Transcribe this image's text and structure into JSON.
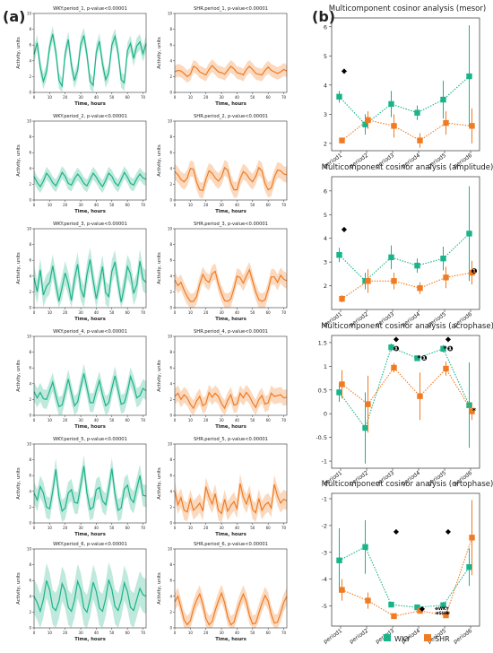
{
  "panel_labels": {
    "a": "(a)",
    "b": "(b)"
  },
  "colors": {
    "wky": "#1bb38a",
    "wky_band": "#bfe9dc",
    "shr": "#f07b22",
    "shr_band": "#fbd9bf",
    "marker": "#000000"
  },
  "common": {
    "xlabel": "Time, hours",
    "ylabel": "Activity, units"
  },
  "legend": {
    "wky": "WKY",
    "shr": "SHR"
  },
  "chart_data": [
    {
      "type": "line",
      "id": "wky_p1",
      "title": "WKY.period_1, p-value<0.00001",
      "xticks": [
        0,
        10,
        20,
        30,
        40,
        50,
        60,
        70
      ],
      "yticks": [
        0,
        2,
        4,
        6,
        8,
        10
      ],
      "xlim": [
        0,
        72
      ],
      "ylim": [
        0,
        10
      ],
      "series": [
        {
          "values": [
            4.8,
            6.3,
            3.2,
            1.4,
            2.6,
            5.8,
            7.4,
            5.1,
            1.5,
            0.8,
            4.9,
            6.7,
            3.4,
            1.5,
            2.8,
            6.1,
            7.2,
            4.8,
            1.4,
            0.9,
            5.1,
            6.5,
            3.6,
            1.6,
            2.5,
            6.0,
            7.1,
            5.0,
            1.6,
            1.2,
            5.3,
            6.2,
            4.3,
            5.9,
            6.4,
            4.9,
            6.2
          ],
          "band": 1.0
        }
      ]
    },
    {
      "type": "line",
      "id": "shr_p1",
      "title": "SHR.period_1, p-value<0.00001",
      "xticks": [
        0,
        10,
        20,
        30,
        40,
        50,
        60,
        70
      ],
      "yticks": [
        0,
        2,
        4,
        6,
        8,
        10
      ],
      "xlim": [
        0,
        72
      ],
      "ylim": [
        0,
        10
      ],
      "series": [
        {
          "values": [
            2.6,
            2.8,
            2.7,
            2.4,
            2.0,
            2.3,
            3.3,
            3.1,
            2.6,
            2.4,
            2.2,
            2.9,
            3.4,
            3.0,
            2.6,
            2.5,
            2.3,
            2.8,
            3.3,
            3.0,
            2.5,
            2.4,
            2.2,
            2.9,
            3.3,
            2.9,
            2.4,
            2.3,
            2.2,
            2.8,
            3.2,
            2.8,
            2.6,
            2.4,
            2.6,
            2.9,
            2.7
          ],
          "band": 0.8
        }
      ]
    },
    {
      "type": "line",
      "id": "wky_p2",
      "title": "WKY.period_2, p-value<0.00001",
      "xticks": [
        0,
        10,
        20,
        30,
        40,
        50,
        60,
        70
      ],
      "yticks": [
        0,
        2,
        4,
        6,
        8,
        10
      ],
      "xlim": [
        0,
        72
      ],
      "ylim": [
        0,
        10
      ],
      "series": [
        {
          "values": [
            3.0,
            2.2,
            1.7,
            2.4,
            3.4,
            2.9,
            2.2,
            1.8,
            2.6,
            3.5,
            3.0,
            2.1,
            1.9,
            2.7,
            3.3,
            2.8,
            2.1,
            1.8,
            2.6,
            3.4,
            2.9,
            2.2,
            1.7,
            2.5,
            3.4,
            3.0,
            2.2,
            1.8,
            2.6,
            3.5,
            2.9,
            2.1,
            1.9,
            2.7,
            3.3,
            2.8,
            2.6
          ],
          "band": 0.8
        }
      ]
    },
    {
      "type": "line",
      "id": "shr_p2",
      "title": "SHR.period_2, p-value<0.00001",
      "xticks": [
        0,
        10,
        20,
        30,
        40,
        50,
        60,
        70
      ],
      "yticks": [
        0,
        2,
        4,
        6,
        8,
        10
      ],
      "xlim": [
        0,
        72
      ],
      "ylim": [
        0,
        10
      ],
      "series": [
        {
          "values": [
            3.6,
            3.2,
            2.6,
            2.3,
            2.8,
            4.0,
            3.9,
            2.3,
            1.3,
            1.2,
            2.6,
            3.7,
            3.4,
            2.8,
            2.4,
            2.9,
            4.1,
            3.8,
            2.2,
            1.3,
            1.3,
            2.7,
            3.6,
            3.3,
            2.7,
            2.3,
            3.0,
            4.1,
            3.7,
            2.1,
            1.3,
            1.5,
            2.9,
            3.8,
            3.7,
            3.3,
            3.2
          ],
          "band": 1.0
        }
      ]
    },
    {
      "type": "line",
      "id": "wky_p3",
      "title": "WKY.period_3, p-value<0.00001",
      "xticks": [
        0,
        10,
        20,
        30,
        40,
        50,
        60,
        70
      ],
      "yticks": [
        0,
        2,
        4,
        6,
        8,
        10
      ],
      "xlim": [
        0,
        72
      ],
      "ylim": [
        0,
        10
      ],
      "series": [
        {
          "values": [
            3.8,
            2.0,
            4.8,
            1.6,
            2.7,
            3.2,
            5.3,
            3.0,
            0.8,
            2.6,
            4.4,
            3.0,
            0.9,
            3.6,
            5.5,
            2.4,
            1.3,
            4.2,
            6.1,
            3.4,
            1.1,
            3.1,
            5.2,
            1.9,
            1.4,
            4.6,
            5.8,
            3.1,
            0.7,
            2.7,
            5.2,
            4.3,
            1.8,
            2.9,
            5.9,
            3.6,
            3.2
          ],
          "band": 1.5
        }
      ]
    },
    {
      "type": "line",
      "id": "shr_p3",
      "title": "SHR.period_3, p-value<0.00001",
      "xticks": [
        0,
        10,
        20,
        30,
        40,
        50,
        60,
        70
      ],
      "yticks": [
        0,
        2,
        4,
        6,
        8,
        10
      ],
      "xlim": [
        0,
        72
      ],
      "ylim": [
        0,
        10
      ],
      "series": [
        {
          "values": [
            3.5,
            2.8,
            3.2,
            2.2,
            1.4,
            0.8,
            0.8,
            1.4,
            3.0,
            4.2,
            3.5,
            3.2,
            4.3,
            4.6,
            3.0,
            1.8,
            0.9,
            0.8,
            1.1,
            2.4,
            4.0,
            3.8,
            3.1,
            4.0,
            4.8,
            3.4,
            2.0,
            1.0,
            0.8,
            1.0,
            2.3,
            3.9,
            3.9,
            3.2,
            4.1,
            3.6,
            3.4
          ],
          "band": 1.0
        }
      ]
    },
    {
      "type": "line",
      "id": "wky_p4",
      "title": "WKY.period_4, p-value<0.00001",
      "xticks": [
        0,
        10,
        20,
        30,
        40,
        50,
        60,
        70
      ],
      "yticks": [
        0,
        2,
        4,
        6,
        8,
        10
      ],
      "xlim": [
        0,
        72
      ],
      "ylim": [
        0,
        10
      ],
      "series": [
        {
          "values": [
            3.0,
            2.2,
            2.9,
            2.1,
            2.0,
            3.1,
            4.2,
            2.5,
            1.1,
            1.3,
            2.9,
            4.6,
            2.8,
            1.2,
            1.7,
            3.6,
            5.3,
            3.5,
            1.6,
            1.6,
            3.1,
            4.4,
            2.6,
            1.2,
            1.6,
            3.4,
            5.0,
            3.2,
            1.4,
            1.6,
            3.0,
            4.9,
            3.8,
            2.2,
            2.5,
            3.4,
            3.1
          ],
          "band": 1.2
        }
      ]
    },
    {
      "type": "line",
      "id": "shr_p4",
      "title": "SHR.period_4, p-value<0.00001",
      "xticks": [
        0,
        10,
        20,
        30,
        40,
        50,
        60,
        70
      ],
      "yticks": [
        0,
        2,
        4,
        6,
        8,
        10
      ],
      "xlim": [
        0,
        72
      ],
      "ylim": [
        0,
        10
      ],
      "series": [
        {
          "values": [
            2.4,
            2.8,
            2.0,
            2.6,
            2.2,
            1.4,
            0.9,
            1.8,
            2.4,
            1.2,
            1.5,
            2.9,
            2.3,
            2.8,
            2.4,
            1.5,
            0.9,
            1.9,
            2.6,
            1.3,
            1.4,
            2.8,
            2.2,
            2.9,
            2.4,
            1.6,
            1.0,
            2.0,
            2.5,
            1.4,
            1.6,
            2.8,
            2.4,
            2.5,
            2.6,
            2.2,
            2.3
          ],
          "band": 1.0
        }
      ]
    },
    {
      "type": "line",
      "id": "wky_p5",
      "title": "WKY.period_5, p-value<0.00001",
      "xticks": [
        0,
        10,
        20,
        30,
        40,
        50,
        60,
        70
      ],
      "yticks": [
        0,
        2,
        4,
        6,
        8,
        10
      ],
      "xlim": [
        0,
        72
      ],
      "ylim": [
        0,
        10
      ],
      "series": [
        {
          "values": [
            3.8,
            2.9,
            4.6,
            3.8,
            2.0,
            1.8,
            4.0,
            6.8,
            3.3,
            1.5,
            1.9,
            3.8,
            4.2,
            2.6,
            2.5,
            4.8,
            7.2,
            3.8,
            1.7,
            2.0,
            4.2,
            4.5,
            2.8,
            2.3,
            4.3,
            6.9,
            3.6,
            1.6,
            1.9,
            4.3,
            4.8,
            3.1,
            2.6,
            4.4,
            6.0,
            3.5,
            3.4
          ],
          "band": 1.4
        }
      ]
    },
    {
      "type": "line",
      "id": "shr_p5",
      "title": "SHR.period_5, p-value<0.00001",
      "xticks": [
        0,
        10,
        20,
        30,
        40,
        50,
        60,
        70
      ],
      "yticks": [
        0,
        2,
        4,
        6,
        8,
        10
      ],
      "xlim": [
        0,
        72
      ],
      "ylim": [
        0,
        10
      ],
      "series": [
        {
          "values": [
            4.0,
            2.3,
            3.2,
            1.6,
            1.4,
            3.0,
            1.6,
            2.0,
            2.5,
            1.5,
            4.6,
            3.3,
            2.4,
            3.7,
            1.6,
            1.2,
            3.0,
            1.5,
            2.2,
            2.7,
            1.8,
            5.0,
            3.3,
            2.4,
            3.6,
            1.7,
            1.3,
            3.1,
            1.6,
            2.3,
            2.6,
            1.9,
            4.9,
            3.4,
            2.5,
            3.0,
            2.8
          ],
          "band": 1.2
        }
      ]
    },
    {
      "type": "line",
      "id": "wky_p6",
      "title": "WKY.period_6, p-value<0.00001",
      "xticks": [
        0,
        10,
        20,
        30,
        40,
        50,
        60,
        70
      ],
      "yticks": [
        0,
        2,
        4,
        6,
        8,
        10
      ],
      "xlim": [
        0,
        72
      ],
      "ylim": [
        0,
        10
      ],
      "series": [
        {
          "values": [
            4.0,
            3.2,
            2.1,
            3.6,
            6.0,
            4.8,
            2.6,
            2.2,
            3.4,
            5.6,
            4.7,
            2.6,
            2.1,
            3.5,
            5.9,
            4.8,
            2.5,
            2.0,
            3.6,
            5.8,
            4.6,
            2.5,
            2.1,
            3.7,
            6.1,
            4.9,
            2.7,
            2.2,
            3.5,
            5.7,
            4.6,
            2.6,
            2.2,
            3.6,
            5.0,
            4.2,
            4.0
          ],
          "band": 2.2
        }
      ]
    },
    {
      "type": "line",
      "id": "shr_p6",
      "title": "SHR.period_6, p-value<0.00001",
      "xticks": [
        0,
        10,
        20,
        30,
        40,
        50,
        60,
        70
      ],
      "yticks": [
        0,
        2,
        4,
        6,
        8,
        10
      ],
      "xlim": [
        0,
        72
      ],
      "ylim": [
        0,
        10
      ],
      "series": [
        {
          "values": [
            3.3,
            4.0,
            2.6,
            1.0,
            0.4,
            0.9,
            2.4,
            3.5,
            4.3,
            3.0,
            1.2,
            0.4,
            0.8,
            2.2,
            3.4,
            4.4,
            3.2,
            1.4,
            0.4,
            0.7,
            2.1,
            3.3,
            4.3,
            3.3,
            1.6,
            0.5,
            0.6,
            1.9,
            3.1,
            4.1,
            3.4,
            1.7,
            0.6,
            0.7,
            1.9,
            3.2,
            4.0
          ],
          "band": 1.1
        }
      ]
    },
    {
      "type": "scatter",
      "id": "mesor",
      "title": "Multicomponent cosinor analysis (mesor)",
      "categories": [
        "period1",
        "period2",
        "period3",
        "period4",
        "period5",
        "period6"
      ],
      "yticks": [
        2,
        3,
        4,
        5,
        6
      ],
      "ylim": [
        1.75,
        6.3
      ],
      "series": [
        {
          "key": "wky",
          "values": [
            3.6,
            2.65,
            3.35,
            3.05,
            3.5,
            4.3
          ],
          "err": [
            0.2,
            0.35,
            0.45,
            0.25,
            0.65,
            1.75
          ]
        },
        {
          "key": "shr",
          "values": [
            2.1,
            2.8,
            2.6,
            2.1,
            2.7,
            2.6
          ],
          "err": [
            0.1,
            0.3,
            0.4,
            0.25,
            0.4,
            0.6
          ]
        }
      ],
      "annotations": [
        {
          "x": "period1",
          "y": 4.5,
          "text": "◆"
        }
      ]
    },
    {
      "type": "scatter",
      "id": "amplitude",
      "title": "Multicomponent cosinor analysis (amplitude)",
      "categories": [
        "period1",
        "period2",
        "period3",
        "period4",
        "period5",
        "period6"
      ],
      "yticks": [
        2,
        3,
        4,
        5,
        6
      ],
      "ylim": [
        1.0,
        6.6
      ],
      "series": [
        {
          "key": "wky",
          "values": [
            3.3,
            2.2,
            3.2,
            2.85,
            3.15,
            4.2
          ],
          "err": [
            0.3,
            0.35,
            0.5,
            0.3,
            0.5,
            2.0
          ]
        },
        {
          "key": "shr",
          "values": [
            1.45,
            2.2,
            2.2,
            1.9,
            2.35,
            2.55
          ],
          "err": [
            0.15,
            0.5,
            0.35,
            0.25,
            0.45,
            0.5
          ]
        }
      ],
      "annotations": [
        {
          "x": "period1",
          "y": 4.4,
          "text": "◆"
        },
        {
          "x": "period6",
          "y": 2.62,
          "text": "❶"
        }
      ]
    },
    {
      "type": "scatter",
      "id": "acrophase",
      "title": "Multicomponent cosinor analysis (acrophase)",
      "categories": [
        "period1",
        "period2",
        "period3",
        "period4",
        "period5",
        "period6"
      ],
      "yticks": [
        -1.0,
        -0.5,
        0.0,
        0.5,
        1.0,
        1.5
      ],
      "ylim": [
        -1.15,
        1.65
      ],
      "series": [
        {
          "key": "wky",
          "values": [
            0.45,
            -0.3,
            1.4,
            1.17,
            1.37,
            0.18
          ],
          "err": [
            0.2,
            0.75,
            0.08,
            0.05,
            0.08,
            0.9
          ]
        },
        {
          "key": "shr",
          "values": [
            0.62,
            0.2,
            0.97,
            0.37,
            0.95,
            0.05
          ],
          "err": [
            0.3,
            0.6,
            0.1,
            0.5,
            0.15,
            0.18
          ]
        }
      ],
      "annotations": [
        {
          "x": "period3",
          "y": 1.58,
          "text": "◆"
        },
        {
          "x": "period3",
          "y": 1.38,
          "text": "❶"
        },
        {
          "x": "period4",
          "y": 1.18,
          "text": "*❶"
        },
        {
          "x": "period5",
          "y": 1.58,
          "text": "◆"
        },
        {
          "x": "period5",
          "y": 1.38,
          "text": "*❶"
        },
        {
          "x": "period6",
          "y": 0.07,
          "text": "*"
        }
      ]
    },
    {
      "type": "scatter",
      "id": "ortophase",
      "title": "Multicomponent cosinor analysis (ortophase)",
      "categories": [
        "period1",
        "period2",
        "period3",
        "period4",
        "period5",
        "period6"
      ],
      "yticks": [
        -1,
        -2,
        -3,
        -4,
        -5
      ],
      "ylim": [
        -5.75,
        -0.8
      ],
      "series": [
        {
          "key": "wky",
          "values": [
            -3.3,
            -2.8,
            -4.95,
            -5.05,
            -4.97,
            -3.55
          ],
          "err": [
            1.2,
            1.0,
            0.1,
            0.1,
            0.12,
            0.7
          ]
        },
        {
          "key": "shr",
          "values": [
            -4.4,
            -4.8,
            -5.38,
            -5.18,
            -5.35,
            -2.45
          ],
          "err": [
            0.4,
            0.3,
            0.1,
            0.08,
            0.1,
            1.4
          ]
        }
      ],
      "annotations": [
        {
          "x": "period3",
          "y": -2.2,
          "text": "◆"
        },
        {
          "x": "period5",
          "y": -2.2,
          "text": "◆"
        },
        {
          "x": "period4",
          "y": -5.08,
          "text": "◆"
        },
        {
          "x": "period5",
          "y": -5.05,
          "text": "❶WKY\n❶SHR"
        },
        {
          "x": "period5",
          "y": -5.3,
          "text": "*"
        }
      ]
    }
  ]
}
